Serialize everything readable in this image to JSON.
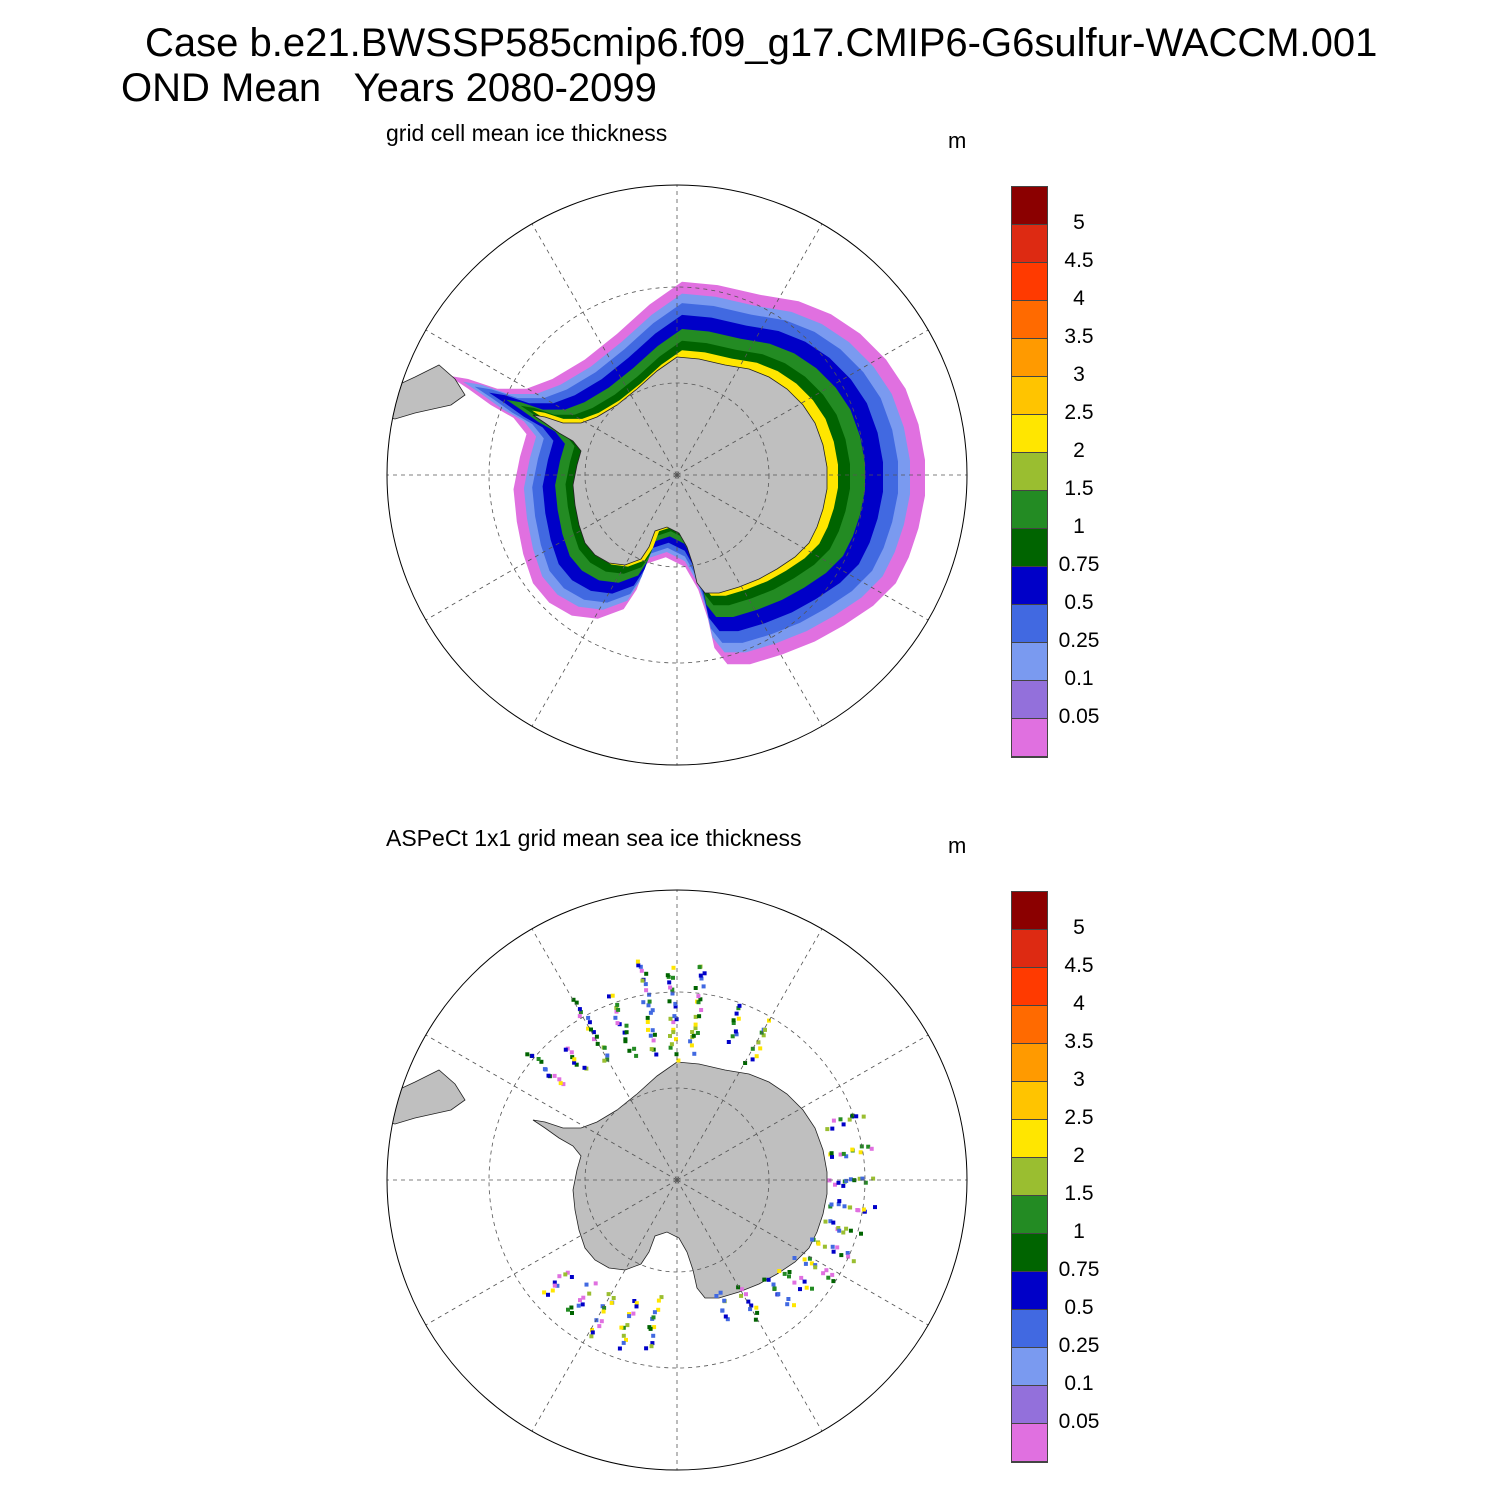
{
  "figure": {
    "title_line_1": "Case b.e21.BWSSP585cmip6.f09_g17.CMIP6-G6sulfur-WACCM.001",
    "title_line_2": "OND Mean   Years 2080-2099"
  },
  "colorbar": {
    "levels": [
      "5",
      "4.5",
      "4",
      "3.5",
      "3",
      "2.5",
      "2",
      "1.5",
      "1",
      "0.75",
      "0.5",
      "0.25",
      "0.1",
      "0.05"
    ],
    "colors": [
      "#8b0000",
      "#dd2a12",
      "#ff3a00",
      "#ff6a00",
      "#ff9a00",
      "#ffc400",
      "#ffe600",
      "#9abe30",
      "#238b23",
      "#006400",
      "#0000c8",
      "#4169e1",
      "#7a9af0",
      "#9370db",
      "#e070e0"
    ]
  },
  "panels": [
    {
      "id": "model",
      "title": "grid cell mean ice thickness",
      "unit": "m",
      "projection": "south-polar-stereographic",
      "ice_colors": [
        "#e070e0",
        "#7a9af0",
        "#4169e1",
        "#0000c8",
        "#238b23",
        "#006400",
        "#ffe600"
      ]
    },
    {
      "id": "observation",
      "title": "ASPeCt 1x1 grid mean sea ice thickness",
      "unit": "m",
      "projection": "south-polar-stereographic",
      "ice_colors": [
        "#0000c8",
        "#4169e1",
        "#238b23",
        "#006400",
        "#9abe30",
        "#e070e0",
        "#ffe600"
      ]
    }
  ]
}
